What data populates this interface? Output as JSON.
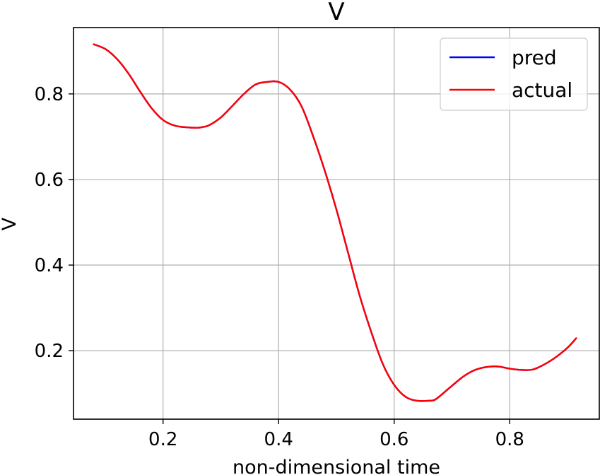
{
  "chart_data": {
    "type": "line",
    "title": "V",
    "xlabel": "non-dimensional time",
    "ylabel": "V",
    "xlim": [
      0.045,
      0.955
    ],
    "ylim": [
      0.04,
      0.955
    ],
    "xticks": [
      0.2,
      0.4,
      0.6,
      0.8
    ],
    "xtick_labels": [
      "0.2",
      "0.4",
      "0.6",
      "0.8"
    ],
    "yticks": [
      0.2,
      0.4,
      0.6,
      0.8
    ],
    "ytick_labels": [
      "0.2",
      "0.4",
      "0.6",
      "0.8"
    ],
    "grid": true,
    "legend_position": "top-right",
    "series": [
      {
        "name": "pred",
        "color": "#0000ff",
        "x": [
          0.08,
          0.1,
          0.12,
          0.14,
          0.16,
          0.18,
          0.2,
          0.22,
          0.24,
          0.26,
          0.27,
          0.28,
          0.3,
          0.32,
          0.34,
          0.36,
          0.38,
          0.4,
          0.42,
          0.44,
          0.46,
          0.48,
          0.5,
          0.52,
          0.54,
          0.56,
          0.58,
          0.6,
          0.62,
          0.64,
          0.66,
          0.67,
          0.68,
          0.7,
          0.72,
          0.74,
          0.76,
          0.78,
          0.8,
          0.82,
          0.84,
          0.86,
          0.88,
          0.9,
          0.915
        ],
        "y": [
          0.916,
          0.905,
          0.882,
          0.848,
          0.806,
          0.767,
          0.739,
          0.726,
          0.722,
          0.721,
          0.723,
          0.727,
          0.745,
          0.772,
          0.8,
          0.822,
          0.828,
          0.828,
          0.81,
          0.77,
          0.7,
          0.62,
          0.53,
          0.43,
          0.33,
          0.245,
          0.17,
          0.12,
          0.092,
          0.083,
          0.083,
          0.085,
          0.095,
          0.118,
          0.14,
          0.155,
          0.162,
          0.163,
          0.158,
          0.155,
          0.156,
          0.168,
          0.185,
          0.207,
          0.229
        ]
      },
      {
        "name": "actual",
        "color": "#ff0000",
        "x": [
          0.08,
          0.1,
          0.12,
          0.14,
          0.16,
          0.18,
          0.2,
          0.22,
          0.24,
          0.26,
          0.27,
          0.28,
          0.3,
          0.32,
          0.34,
          0.36,
          0.38,
          0.4,
          0.42,
          0.44,
          0.46,
          0.48,
          0.5,
          0.52,
          0.54,
          0.56,
          0.58,
          0.6,
          0.62,
          0.64,
          0.66,
          0.67,
          0.68,
          0.7,
          0.72,
          0.74,
          0.76,
          0.78,
          0.8,
          0.82,
          0.84,
          0.86,
          0.88,
          0.9,
          0.915
        ],
        "y": [
          0.916,
          0.905,
          0.882,
          0.848,
          0.806,
          0.767,
          0.739,
          0.726,
          0.722,
          0.721,
          0.723,
          0.727,
          0.745,
          0.772,
          0.8,
          0.822,
          0.828,
          0.828,
          0.81,
          0.77,
          0.7,
          0.62,
          0.53,
          0.43,
          0.33,
          0.245,
          0.17,
          0.12,
          0.092,
          0.083,
          0.083,
          0.085,
          0.095,
          0.118,
          0.14,
          0.155,
          0.162,
          0.163,
          0.158,
          0.155,
          0.156,
          0.168,
          0.185,
          0.207,
          0.229
        ]
      }
    ]
  }
}
